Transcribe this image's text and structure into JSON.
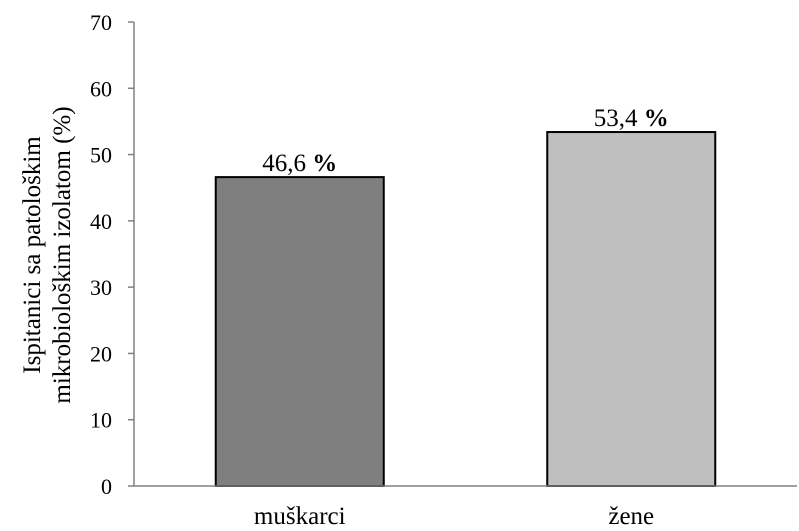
{
  "chart_data": {
    "type": "bar",
    "categories": [
      "muškarci",
      "žene"
    ],
    "values": [
      46.6,
      53.4
    ],
    "data_labels": [
      {
        "number": "46,6",
        "unit": "%"
      },
      {
        "number": "53,4",
        "unit": "%"
      }
    ],
    "bar_colors": [
      "#7f7f7f",
      "#bfbfbf"
    ],
    "edge_color": "#000000",
    "ylabel_lines": [
      "Ispitanici  sa patološkim",
      "mikrobiološkim izolatom (%)"
    ],
    "ylim": [
      0,
      70
    ],
    "yticks": [
      0,
      10,
      20,
      30,
      40,
      50,
      60,
      70
    ],
    "grid": false,
    "legend": "none"
  }
}
